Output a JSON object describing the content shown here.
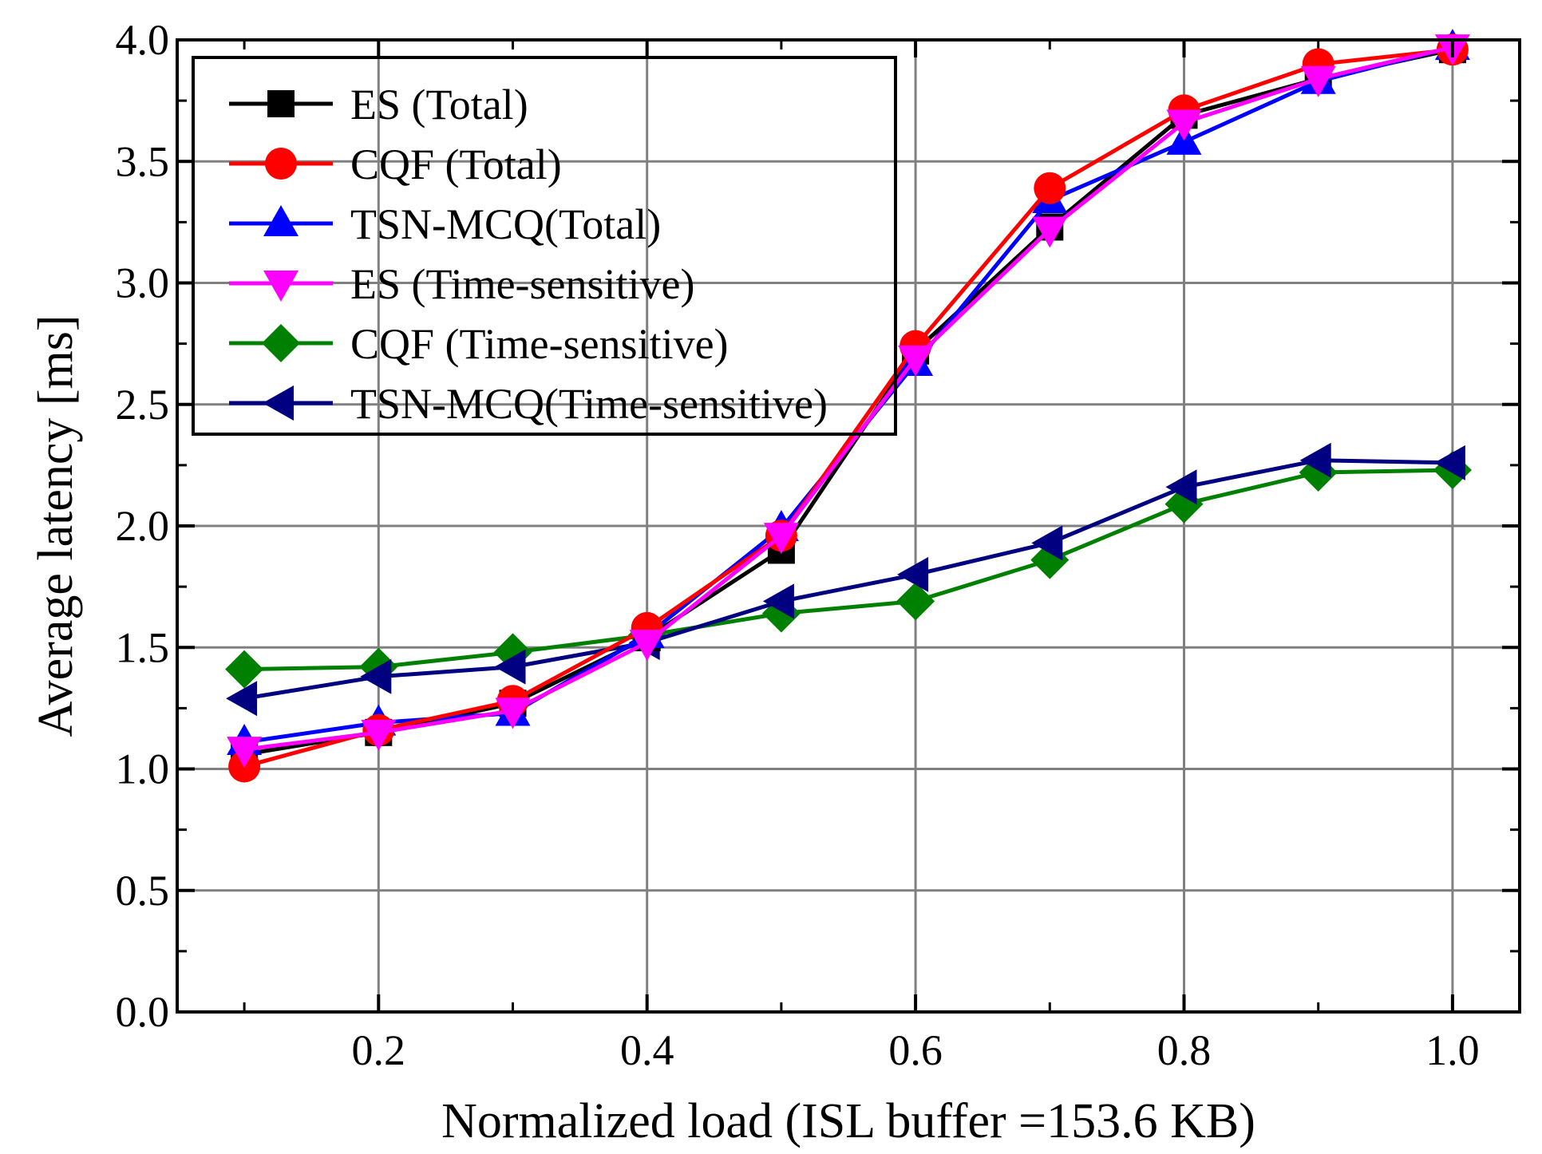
{
  "chart_data": {
    "type": "line",
    "xlabel": "Normalized load (ISL buffer =153.6 KB)",
    "ylabel": "Average latency [ms]",
    "xlim": [
      0.05,
      1.05
    ],
    "ylim": [
      0.0,
      4.0
    ],
    "grid": true,
    "legend_position": "top-left",
    "x": [
      0.1,
      0.2,
      0.3,
      0.4,
      0.5,
      0.6,
      0.7,
      0.8,
      0.9,
      1.0
    ],
    "x_ticks": [
      0.2,
      0.4,
      0.6,
      0.8,
      1.0
    ],
    "x_tick_labels": [
      "0.2",
      "0.4",
      "0.6",
      "0.8",
      "1.0"
    ],
    "y_ticks": [
      0.0,
      0.5,
      1.0,
      1.5,
      2.0,
      2.5,
      3.0,
      3.5,
      4.0
    ],
    "y_tick_labels": [
      "0.0",
      "0.5",
      "1.0",
      "1.5",
      "2.0",
      "2.5",
      "3.0",
      "3.5",
      "4.0"
    ],
    "series": [
      {
        "name": "ES (Total)",
        "color": "#000000",
        "marker": "square",
        "values": [
          1.06,
          1.15,
          1.27,
          1.54,
          1.9,
          2.72,
          3.23,
          3.69,
          3.84,
          3.96
        ]
      },
      {
        "name": "CQF (Total)",
        "color": "#ff0000",
        "marker": "circle",
        "values": [
          1.01,
          1.16,
          1.28,
          1.58,
          1.96,
          2.74,
          3.39,
          3.71,
          3.9,
          3.96
        ]
      },
      {
        "name": "TSN-MCQ(Total)",
        "color": "#0000ff",
        "marker": "triangle-up",
        "values": [
          1.11,
          1.19,
          1.23,
          1.55,
          1.99,
          2.67,
          3.34,
          3.58,
          3.83,
          3.97
        ]
      },
      {
        "name": "ES (Time-sensitive)",
        "color": "#ff00ff",
        "marker": "triangle-down",
        "values": [
          1.08,
          1.15,
          1.24,
          1.52,
          1.96,
          2.69,
          3.22,
          3.66,
          3.84,
          3.97
        ]
      },
      {
        "name": "CQF (Time-sensitive)",
        "color": "#008000",
        "marker": "diamond",
        "values": [
          1.41,
          1.42,
          1.48,
          1.55,
          1.64,
          1.69,
          1.86,
          2.09,
          2.22,
          2.23
        ]
      },
      {
        "name": "TSN-MCQ(Time-sensitive)",
        "color": "#000080",
        "marker": "triangle-left",
        "values": [
          1.29,
          1.38,
          1.42,
          1.52,
          1.69,
          1.8,
          1.93,
          2.16,
          2.27,
          2.26
        ]
      }
    ]
  }
}
